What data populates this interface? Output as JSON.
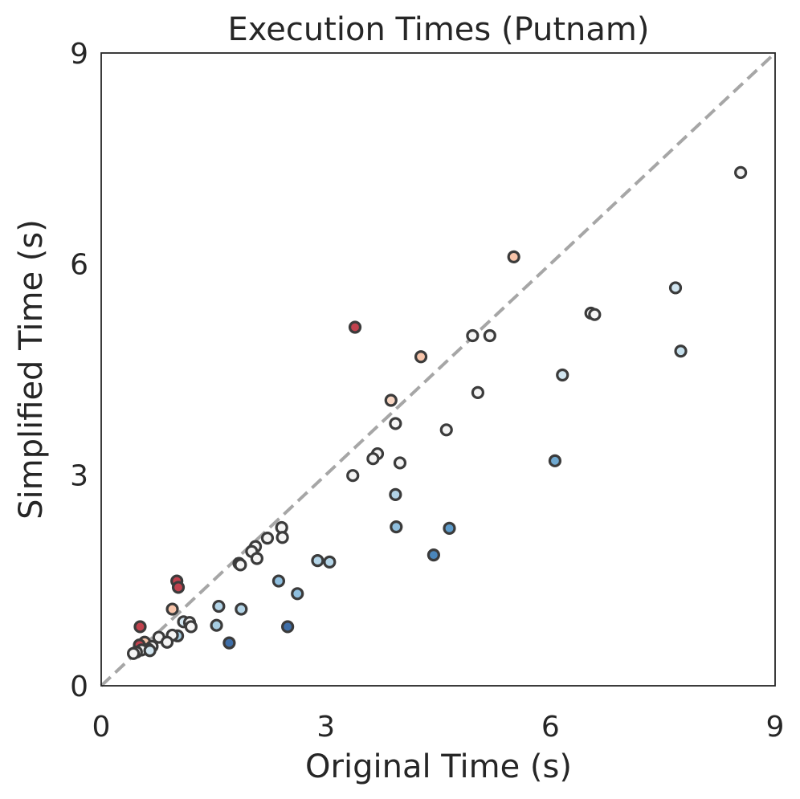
{
  "chart_data": {
    "type": "scatter",
    "title": "Execution Times (Putnam)",
    "xlabel": "Original Time (s)",
    "ylabel": "Simplified Time (s)",
    "xlim": [
      0,
      9
    ],
    "ylim": [
      0,
      9
    ],
    "xticks": [
      "0",
      "3",
      "6",
      "9"
    ],
    "yticks": [
      "0",
      "3",
      "6",
      "9"
    ],
    "grid": false,
    "reference_line": {
      "type": "identity",
      "style": "dashed",
      "color": "#a6a6a6"
    },
    "marker_edge_color": "#3b3b3b",
    "points": [
      {
        "x": 8.54,
        "y": 7.3,
        "color": "#f4f4f4"
      },
      {
        "x": 5.51,
        "y": 6.1,
        "color": "#f7c4aa"
      },
      {
        "x": 7.67,
        "y": 5.66,
        "color": "#d1e5f0"
      },
      {
        "x": 6.54,
        "y": 5.3,
        "color": "#f4f4f4"
      },
      {
        "x": 6.59,
        "y": 5.28,
        "color": "#f4f4f4"
      },
      {
        "x": 3.39,
        "y": 5.1,
        "color": "#c1424e"
      },
      {
        "x": 4.96,
        "y": 4.98,
        "color": "#f4f4f4"
      },
      {
        "x": 5.19,
        "y": 4.98,
        "color": "#f4f4f4"
      },
      {
        "x": 7.74,
        "y": 4.76,
        "color": "#c5dfec"
      },
      {
        "x": 4.27,
        "y": 4.68,
        "color": "#f7c4aa"
      },
      {
        "x": 6.16,
        "y": 4.42,
        "color": "#d1e5f0"
      },
      {
        "x": 5.03,
        "y": 4.17,
        "color": "#f4f4f4"
      },
      {
        "x": 3.87,
        "y": 4.06,
        "color": "#f7d5c2"
      },
      {
        "x": 3.93,
        "y": 3.73,
        "color": "#f4f4f4"
      },
      {
        "x": 4.61,
        "y": 3.64,
        "color": "#f4f4f4"
      },
      {
        "x": 3.69,
        "y": 3.3,
        "color": "#f4f4f4"
      },
      {
        "x": 3.63,
        "y": 3.23,
        "color": "#f4f4f4"
      },
      {
        "x": 3.99,
        "y": 3.17,
        "color": "#f4f4f4"
      },
      {
        "x": 6.06,
        "y": 3.2,
        "color": "#6fa9d1"
      },
      {
        "x": 3.36,
        "y": 2.99,
        "color": "#f4f4f4"
      },
      {
        "x": 3.93,
        "y": 2.72,
        "color": "#b3d4e7"
      },
      {
        "x": 3.94,
        "y": 2.26,
        "color": "#8fbfdf"
      },
      {
        "x": 4.65,
        "y": 2.24,
        "color": "#5e9ccc"
      },
      {
        "x": 2.41,
        "y": 2.25,
        "color": "#f4f4f4"
      },
      {
        "x": 2.42,
        "y": 2.11,
        "color": "#f4f4f4"
      },
      {
        "x": 2.22,
        "y": 2.1,
        "color": "#f4f4f4"
      },
      {
        "x": 2.06,
        "y": 1.98,
        "color": "#f4f4f4"
      },
      {
        "x": 2.01,
        "y": 1.91,
        "color": "#f4f4f4"
      },
      {
        "x": 2.08,
        "y": 1.81,
        "color": "#f4f4f4"
      },
      {
        "x": 4.44,
        "y": 1.86,
        "color": "#4a86bb"
      },
      {
        "x": 1.84,
        "y": 1.74,
        "color": "#f4f4f4"
      },
      {
        "x": 1.86,
        "y": 1.72,
        "color": "#f4f4f4"
      },
      {
        "x": 2.89,
        "y": 1.78,
        "color": "#b3d4e7"
      },
      {
        "x": 3.05,
        "y": 1.76,
        "color": "#b3d4e7"
      },
      {
        "x": 1.01,
        "y": 1.49,
        "color": "#c1424e"
      },
      {
        "x": 1.03,
        "y": 1.4,
        "color": "#c1424e"
      },
      {
        "x": 2.37,
        "y": 1.49,
        "color": "#8fbfdf"
      },
      {
        "x": 2.62,
        "y": 1.31,
        "color": "#8fbfdf"
      },
      {
        "x": 1.57,
        "y": 1.13,
        "color": "#b3d4e7"
      },
      {
        "x": 1.87,
        "y": 1.09,
        "color": "#b3d4e7"
      },
      {
        "x": 0.95,
        "y": 1.09,
        "color": "#f7c4aa"
      },
      {
        "x": 1.1,
        "y": 0.91,
        "color": "#d1e5f0"
      },
      {
        "x": 1.18,
        "y": 0.9,
        "color": "#f4f4f4"
      },
      {
        "x": 1.2,
        "y": 0.84,
        "color": "#f4f4f4"
      },
      {
        "x": 1.54,
        "y": 0.86,
        "color": "#a6cde2"
      },
      {
        "x": 2.49,
        "y": 0.84,
        "color": "#3e6ea8"
      },
      {
        "x": 0.52,
        "y": 0.84,
        "color": "#c1424e"
      },
      {
        "x": 1.02,
        "y": 0.71,
        "color": "#a6cde2"
      },
      {
        "x": 0.95,
        "y": 0.72,
        "color": "#f4f4f4"
      },
      {
        "x": 0.77,
        "y": 0.69,
        "color": "#f4f4f4"
      },
      {
        "x": 0.88,
        "y": 0.62,
        "color": "#f4f4f4"
      },
      {
        "x": 1.71,
        "y": 0.61,
        "color": "#3e6ea8"
      },
      {
        "x": 0.58,
        "y": 0.62,
        "color": "#f7c4aa"
      },
      {
        "x": 0.51,
        "y": 0.58,
        "color": "#c1424e"
      },
      {
        "x": 0.68,
        "y": 0.56,
        "color": "#f4f4f4"
      },
      {
        "x": 0.63,
        "y": 0.52,
        "color": "#f4f4f4"
      },
      {
        "x": 0.54,
        "y": 0.51,
        "color": "#f4f4f4"
      },
      {
        "x": 0.47,
        "y": 0.48,
        "color": "#f4f4f4"
      },
      {
        "x": 0.43,
        "y": 0.46,
        "color": "#f4f4f4"
      },
      {
        "x": 0.65,
        "y": 0.5,
        "color": "#d1e5f0"
      }
    ]
  }
}
